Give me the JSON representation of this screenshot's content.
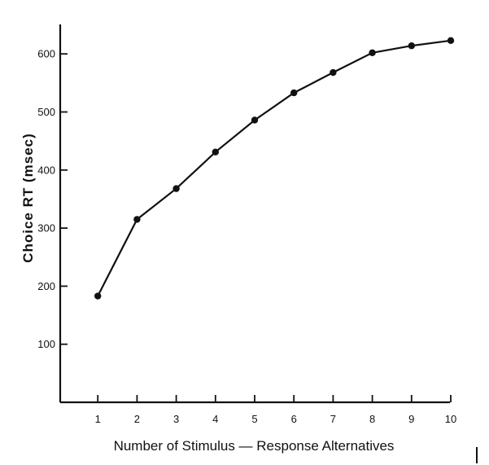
{
  "chart_data": {
    "type": "line",
    "title": "",
    "xlabel": "Number of Stimulus — Response Alternatives",
    "ylabel": "Choice RT (msec)",
    "x": [
      1,
      2,
      3,
      4,
      5,
      6,
      7,
      8,
      9,
      10
    ],
    "x_tick_labels": [
      "1",
      "2",
      "3",
      "4",
      "5",
      "6",
      "7",
      "8",
      "9",
      "10"
    ],
    "y_ticks": [
      100,
      200,
      300,
      400,
      500,
      600
    ],
    "y_tick_labels": [
      "100",
      "200",
      "300",
      "400",
      "500",
      "600"
    ],
    "xlim": [
      0,
      10
    ],
    "ylim": [
      0,
      650
    ],
    "grid": false,
    "series": [
      {
        "values": [
          183,
          315,
          368,
          431,
          486,
          533,
          568,
          602,
          614,
          623
        ]
      }
    ]
  }
}
